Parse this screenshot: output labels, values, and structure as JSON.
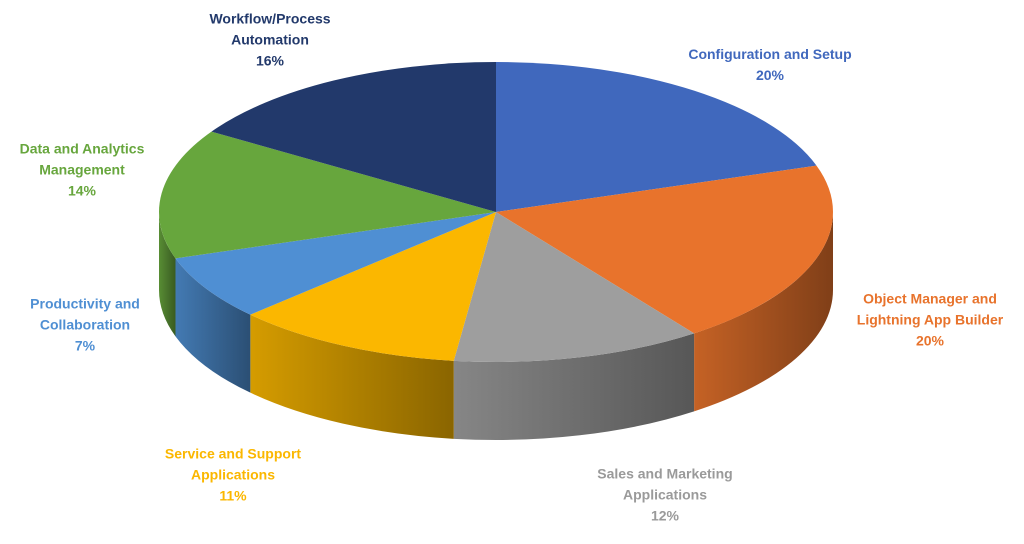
{
  "chart_data": {
    "type": "pie3d",
    "categories": [
      "Configuration and Setup",
      "Object Manager and Lightning App Builder",
      "Sales and Marketing Applications",
      "Service and Support Applications",
      "Productivity and Collaboration",
      "Data and Analytics Management",
      "Workflow/Process Automation"
    ],
    "values": [
      20,
      20,
      12,
      11,
      7,
      14,
      16
    ],
    "value_labels": [
      "20%",
      "20%",
      "12%",
      "11%",
      "7%",
      "14%",
      "16%"
    ],
    "colors": [
      "#4068bd",
      "#e8732c",
      "#9e9e9e",
      "#fbb700",
      "#4f8fd3",
      "#67a63d",
      "#22396b"
    ]
  }
}
